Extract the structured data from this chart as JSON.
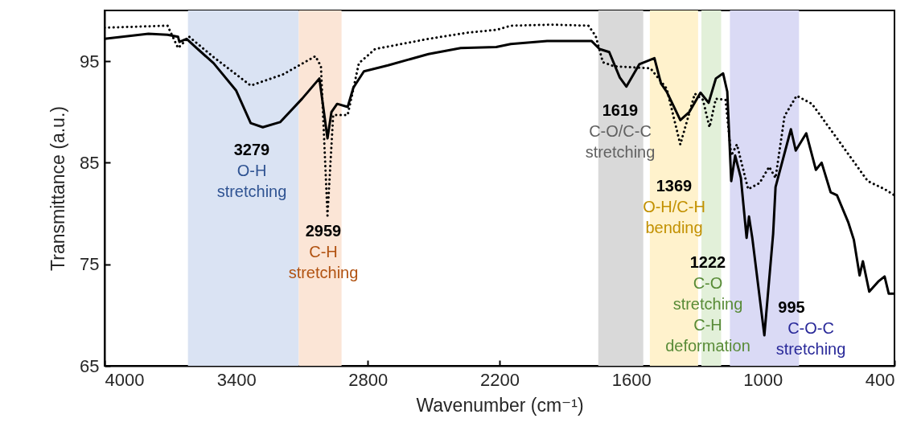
{
  "chart_data": {
    "type": "line",
    "xlabel": "Wavenumber (cm⁻¹)",
    "ylabel": "Transmittance (a.u.)",
    "xlim": [
      4000,
      400
    ],
    "xticks": [
      4000,
      3400,
      2800,
      2200,
      1600,
      1000,
      400
    ],
    "ylim": [
      65,
      100
    ],
    "yticks": [
      65,
      75,
      85,
      95
    ],
    "grid": false,
    "series": [
      {
        "color": "#000000",
        "line_style": "solid",
        "x": [
          4000,
          3800,
          3713,
          3665,
          3659,
          3626,
          3586,
          3503,
          3400,
          3334,
          3279,
          3200,
          3100,
          3021,
          2984,
          2966,
          2940,
          2892,
          2866,
          2818,
          2708,
          2524,
          2377,
          2215,
          2149,
          1983,
          1781,
          1744,
          1700,
          1652,
          1622,
          1563,
          1494,
          1464,
          1438,
          1376,
          1335,
          1284,
          1247,
          1214,
          1181,
          1162,
          1144,
          1126,
          1100,
          1074,
          1063,
          1048,
          993,
          953,
          942,
          872,
          850,
          802,
          758,
          732,
          691,
          662,
          610,
          585,
          559,
          544,
          515,
          474,
          445,
          426,
          400
        ],
        "values": [
          97.2,
          97.7,
          97.6,
          97.4,
          96.9,
          97.2,
          96.4,
          94.8,
          92.1,
          88.9,
          88.5,
          89.0,
          91.3,
          93.3,
          87.4,
          90.0,
          90.8,
          90.5,
          92.4,
          94.0,
          94.6,
          95.7,
          96.3,
          96.4,
          96.7,
          97.0,
          97.0,
          96.2,
          95.9,
          93.4,
          92.5,
          94.7,
          95.3,
          92.8,
          92.0,
          89.2,
          90.0,
          91.9,
          90.9,
          93.3,
          93.8,
          92.0,
          83.2,
          85.7,
          83.5,
          77.6,
          79.7,
          77.6,
          68.0,
          78.0,
          82.6,
          88.3,
          86.2,
          87.9,
          84.3,
          85.0,
          82.1,
          81.8,
          79.1,
          77.4,
          73.9,
          75.3,
          72.3,
          73.3,
          73.8,
          72.1,
          72.1
        ]
      },
      {
        "color": "#000000",
        "line_style": "dotted",
        "x": [
          4000,
          3713,
          3665,
          3614,
          3503,
          3334,
          3187,
          3039,
          3014,
          2984,
          2958,
          2892,
          2841,
          2767,
          2524,
          2351,
          2211,
          2149,
          1961,
          1795,
          1762,
          1729,
          1678,
          1512,
          1438,
          1376,
          1310,
          1273,
          1243,
          1214,
          1170,
          1144,
          1118,
          1067,
          1015,
          971,
          942,
          901,
          846,
          776,
          662,
          522,
          445,
          400
        ],
        "values": [
          98.3,
          98.5,
          96.3,
          97.4,
          95.4,
          92.6,
          93.7,
          95.5,
          94.5,
          79.8,
          89.7,
          89.7,
          94.8,
          96.2,
          97.2,
          97.8,
          98.1,
          98.5,
          98.6,
          98.5,
          97.5,
          94.9,
          94.5,
          94.3,
          92.3,
          86.8,
          91.8,
          91.2,
          88.5,
          91.3,
          91.2,
          85.7,
          86.8,
          82.4,
          83.0,
          84.6,
          83.5,
          89.6,
          91.6,
          90.8,
          87.4,
          83.2,
          82.4,
          81.8
        ]
      }
    ],
    "bands": [
      {
        "axis": "x",
        "from": 3620,
        "to": 3115,
        "color": "#dae3f3",
        "label": "O-H stretching"
      },
      {
        "axis": "x",
        "from": 3115,
        "to": 2920,
        "color": "#fbe5d6",
        "label": "C-H stretching"
      },
      {
        "axis": "x",
        "from": 1750,
        "to": 1545,
        "color": "#d9d9d9",
        "label": "C-O/C-C stretching"
      },
      {
        "axis": "x",
        "from": 1515,
        "to": 1295,
        "color": "#fff2cc",
        "label": "O-H/C-H bending"
      },
      {
        "axis": "x",
        "from": 1280,
        "to": 1190,
        "color": "#e2f0d9",
        "label": "C-O stretching C-H deformation"
      },
      {
        "axis": "x",
        "from": 1150,
        "to": 835,
        "color": "#dadaf5",
        "label": "C-O-C stretching"
      }
    ],
    "annotations": [
      "3279",
      "2959",
      "1619",
      "1369",
      "1222",
      "995"
    ]
  }
}
